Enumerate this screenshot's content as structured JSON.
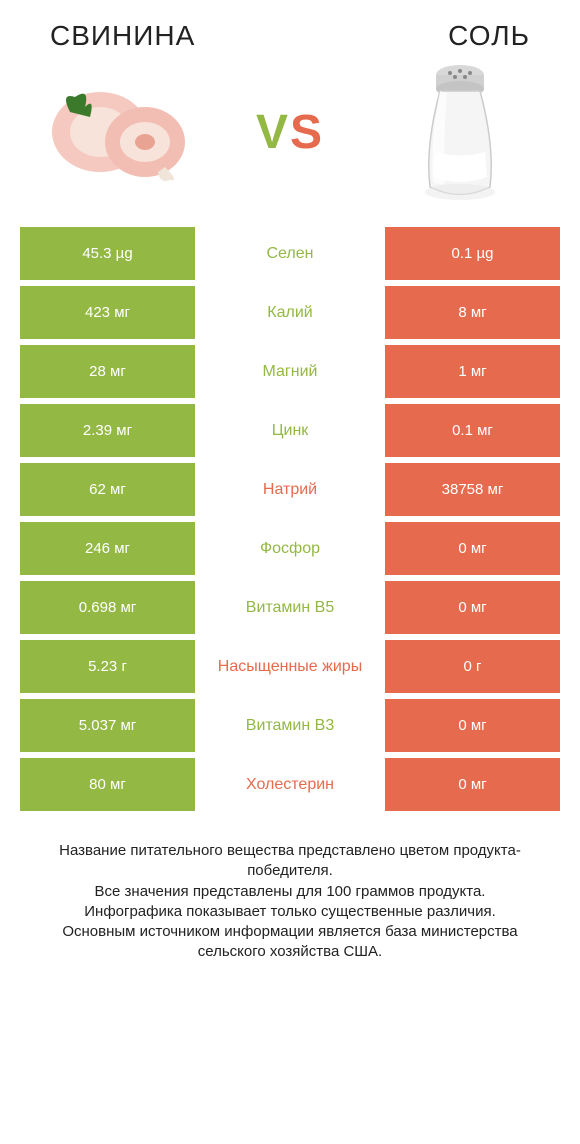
{
  "left_title": "СВИНИНА",
  "right_title": "СОЛЬ",
  "vs_v": "V",
  "vs_s": "S",
  "colors": {
    "green": "#93b843",
    "orange": "#e66a4d",
    "text": "#222222"
  },
  "rows": [
    {
      "left": "45.3 µg",
      "label": "Селен",
      "right": "0.1 µg",
      "label_color": "#93b843"
    },
    {
      "left": "423 мг",
      "label": "Калий",
      "right": "8 мг",
      "label_color": "#93b843"
    },
    {
      "left": "28 мг",
      "label": "Магний",
      "right": "1 мг",
      "label_color": "#93b843"
    },
    {
      "left": "2.39 мг",
      "label": "Цинк",
      "right": "0.1 мг",
      "label_color": "#93b843"
    },
    {
      "left": "62 мг",
      "label": "Натрий",
      "right": "38758 мг",
      "label_color": "#e66a4d"
    },
    {
      "left": "246 мг",
      "label": "Фосфор",
      "right": "0 мг",
      "label_color": "#93b843"
    },
    {
      "left": "0.698 мг",
      "label": "Витамин B5",
      "right": "0 мг",
      "label_color": "#93b843"
    },
    {
      "left": "5.23 г",
      "label": "Насыщенные жиры",
      "right": "0 г",
      "label_color": "#e66a4d"
    },
    {
      "left": "5.037 мг",
      "label": "Витамин B3",
      "right": "0 мг",
      "label_color": "#93b843"
    },
    {
      "left": "80 мг",
      "label": "Холестерин",
      "right": "0 мг",
      "label_color": "#e66a4d"
    }
  ],
  "footnote_lines": [
    "Название питательного вещества представлено цветом продукта-победителя.",
    "Все значения представлены для 100 граммов продукта.",
    "Инфографика показывает только существенные различия.",
    "Основным источником информации является база министерства сельского хозяйства США."
  ]
}
